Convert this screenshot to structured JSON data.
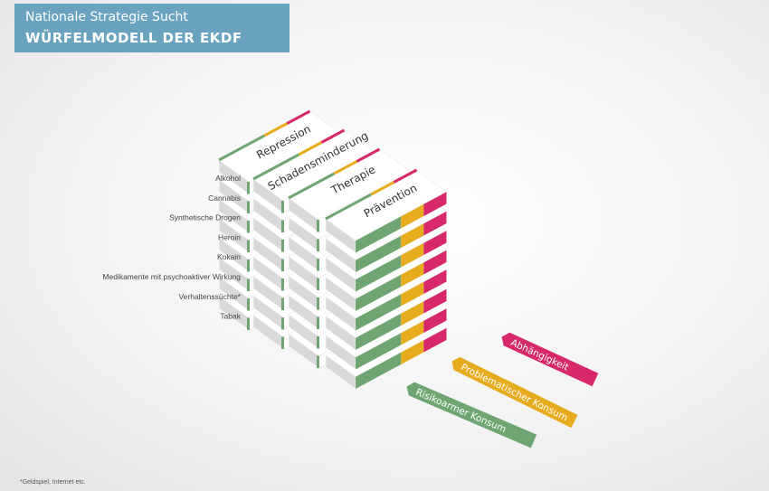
{
  "header": {
    "title": "Nationale Strategie Sucht",
    "subtitle": "WÜRFELMODELL DER EKDF"
  },
  "substances": [
    "Alkohol",
    "Cannabis",
    "Synthetische Drogen",
    "Heroin",
    "Kokain",
    "Medikamente mit psychoaktiver Wirkung",
    "Verhaltenssüchte*",
    "Tabak"
  ],
  "pillars": [
    "Repression",
    "Schadensminderung",
    "Therapie",
    "Prävention"
  ],
  "consumption_levels": [
    "Risikoarmer Konsum",
    "Problematischer Konsum",
    "Abhängigkeit"
  ],
  "colors": {
    "title_bg": "#6aa3c0",
    "green": "#6fa572",
    "yellow": "#e7ac1d",
    "pink": "#d6286a"
  },
  "footnote": "*Geldspiel, Internet etc."
}
